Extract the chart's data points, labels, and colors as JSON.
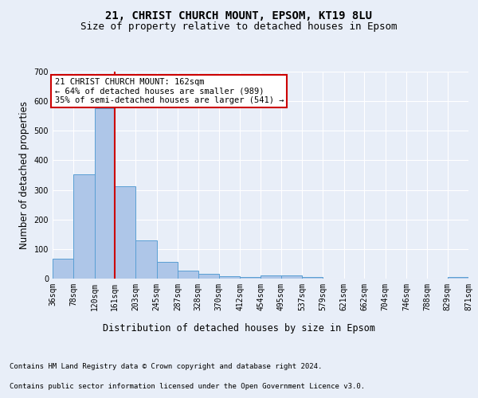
{
  "title_line1": "21, CHRIST CHURCH MOUNT, EPSOM, KT19 8LU",
  "title_line2": "Size of property relative to detached houses in Epsom",
  "xlabel": "Distribution of detached houses by size in Epsom",
  "ylabel": "Number of detached properties",
  "footnote1": "Contains HM Land Registry data © Crown copyright and database right 2024.",
  "footnote2": "Contains public sector information licensed under the Open Government Licence v3.0.",
  "annotation_line1": "21 CHRIST CHURCH MOUNT: 162sqm",
  "annotation_line2": "← 64% of detached houses are smaller (989)",
  "annotation_line3": "35% of semi-detached houses are larger (541) →",
  "bar_edges": [
    36,
    78,
    120,
    161,
    203,
    245,
    287,
    328,
    370,
    412,
    454,
    495,
    537,
    579,
    621,
    662,
    704,
    746,
    788,
    829,
    871
  ],
  "bar_heights": [
    68,
    352,
    575,
    312,
    130,
    57,
    27,
    17,
    8,
    5,
    10,
    10,
    5,
    0,
    0,
    0,
    0,
    0,
    0,
    5
  ],
  "bar_color": "#aec6e8",
  "bar_edge_color": "#5a9fd4",
  "red_line_x": 161,
  "ylim": [
    0,
    700
  ],
  "yticks": [
    0,
    100,
    200,
    300,
    400,
    500,
    600,
    700
  ],
  "bg_color": "#e8eef8",
  "plot_bg_color": "#e8eef8",
  "grid_color": "#ffffff",
  "annotation_box_color": "#ffffff",
  "annotation_box_edge": "#cc0000",
  "red_line_color": "#cc0000",
  "title_fontsize": 10,
  "subtitle_fontsize": 9,
  "axis_label_fontsize": 8.5,
  "tick_fontsize": 7,
  "annotation_fontsize": 7.5,
  "footnote_fontsize": 6.5
}
